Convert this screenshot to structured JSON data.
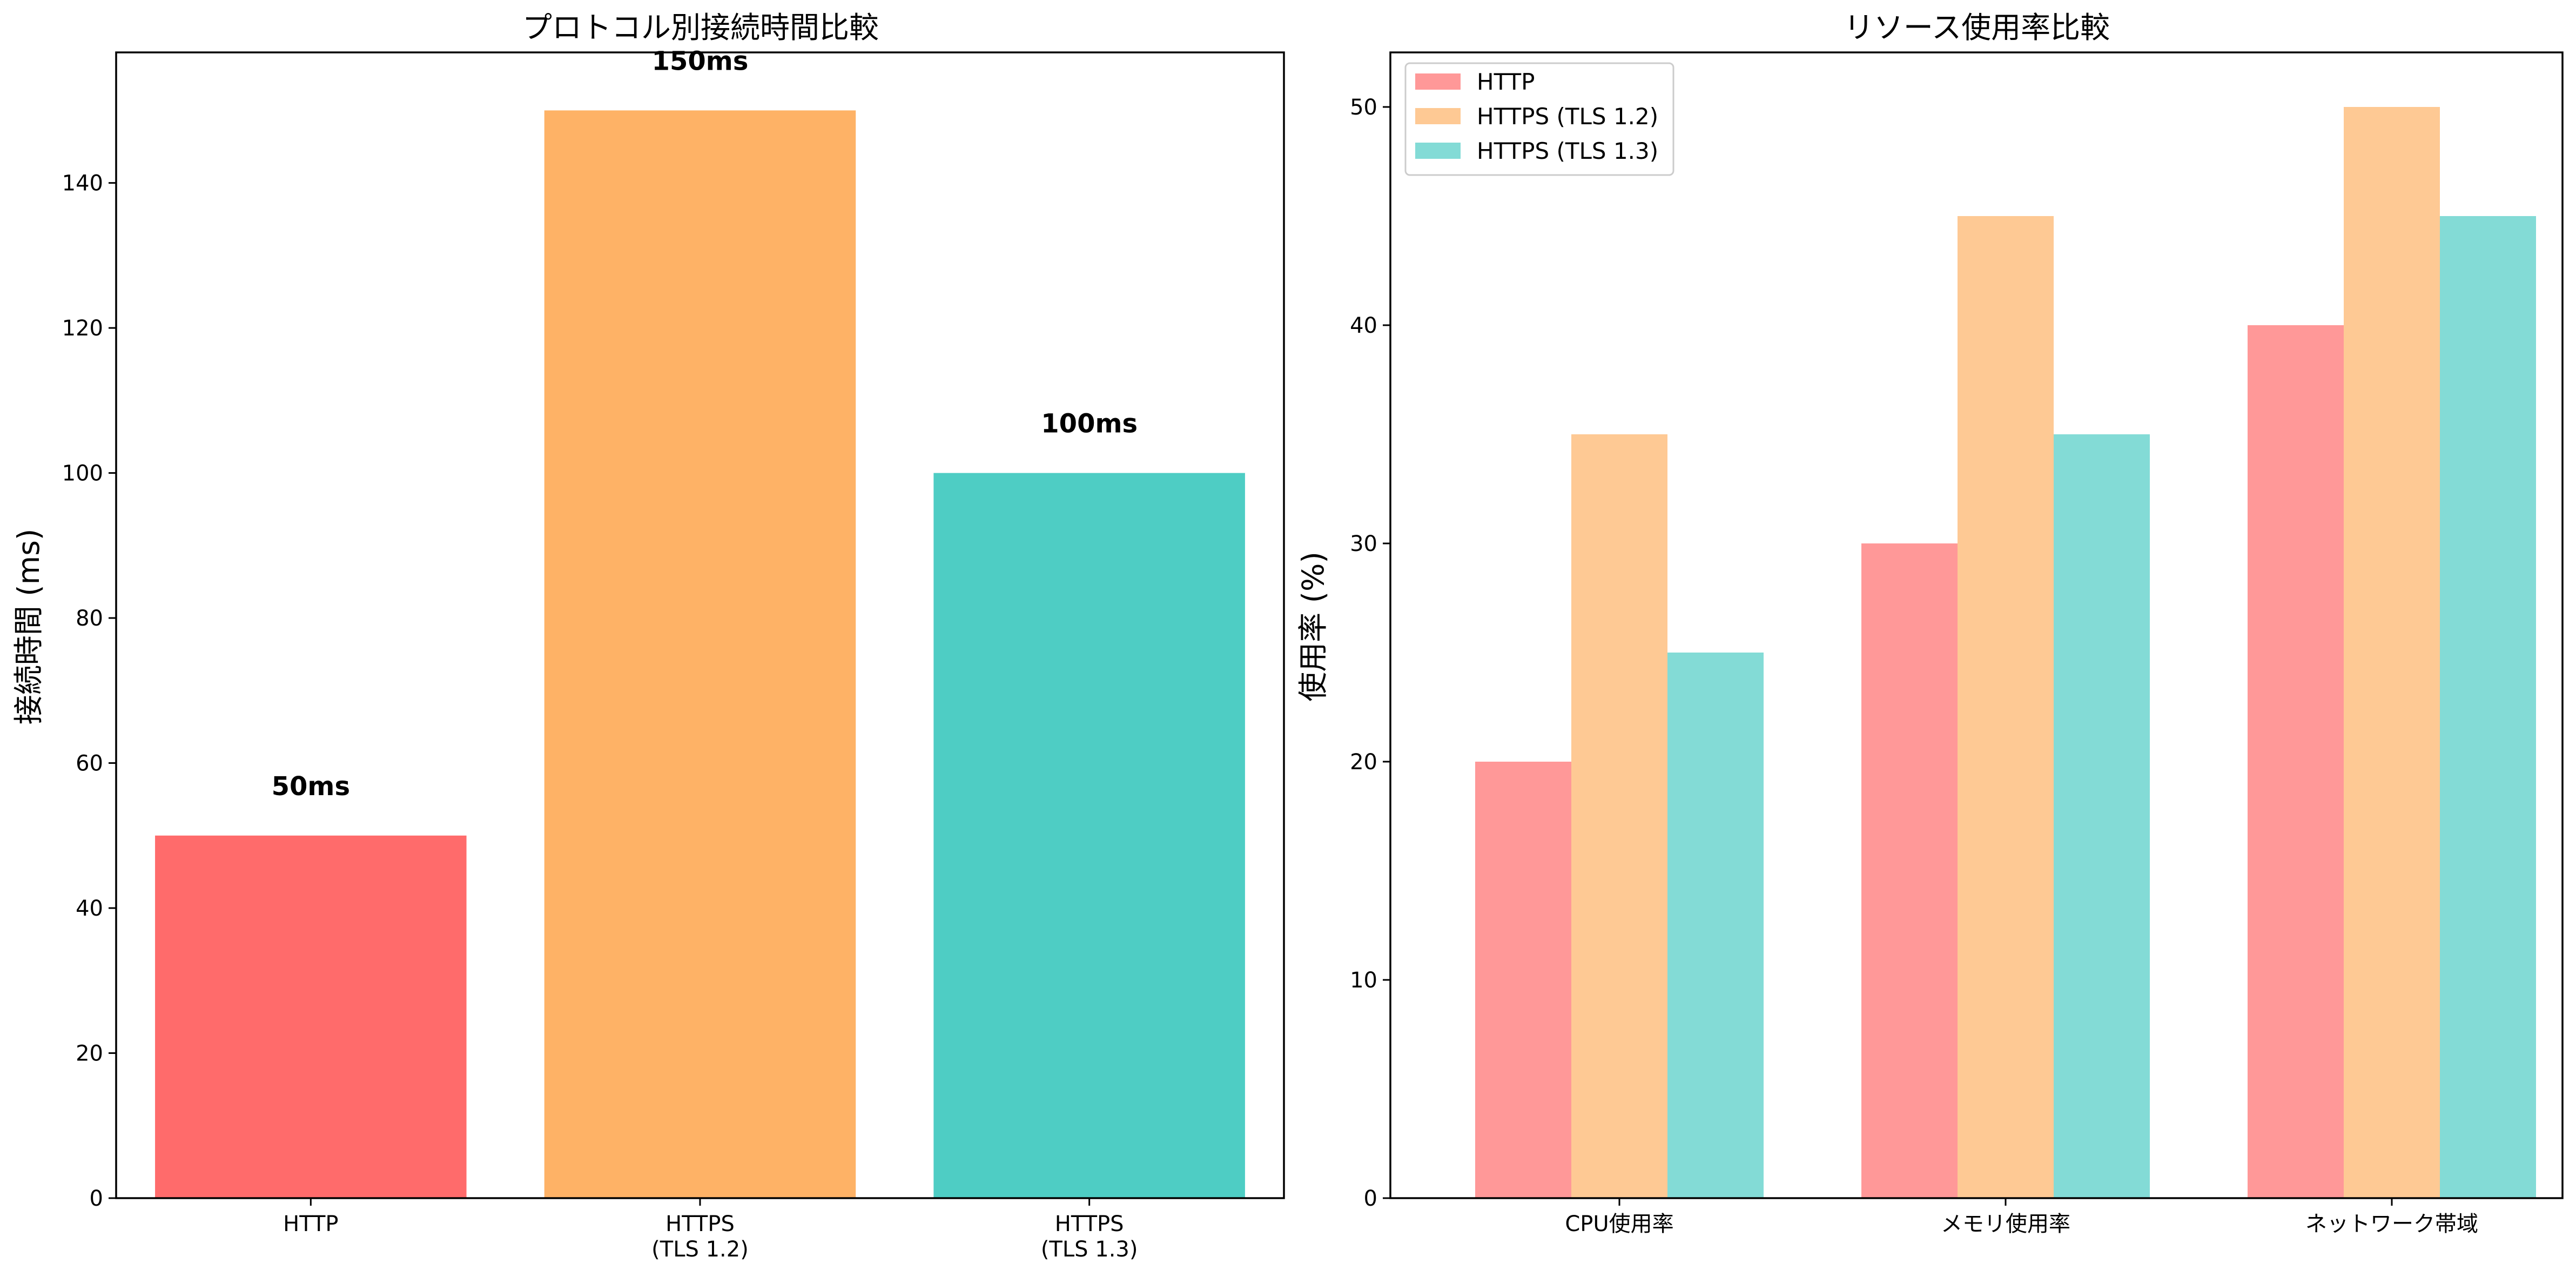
{
  "chart_data": [
    {
      "type": "bar",
      "title": "プロトコル別接続時間比較",
      "xlabel": "",
      "ylabel": "接続時間 (ms)",
      "categories": [
        [
          "HTTP"
        ],
        [
          "HTTPS",
          "(TLS 1.2)"
        ],
        [
          "HTTPS",
          "(TLS 1.3)"
        ]
      ],
      "values": [
        50,
        150,
        100
      ],
      "data_labels": [
        "50ms",
        "150ms",
        "100ms"
      ],
      "colors": [
        "#ff6b6b",
        "#feb266",
        "#4ecdc4"
      ],
      "ylim": [
        0,
        158
      ],
      "yticks": [
        0,
        20,
        40,
        60,
        80,
        100,
        120,
        140
      ],
      "grid": false
    },
    {
      "type": "bar",
      "title": "リソース使用率比較",
      "xlabel": "",
      "ylabel": "使用率 (%)",
      "categories": [
        "CPU使用率",
        "メモリ使用率",
        "ネットワーク帯域"
      ],
      "series": [
        {
          "name": "HTTP",
          "values": [
            20,
            30,
            40
          ],
          "color": "#ff9898"
        },
        {
          "name": "HTTPS (TLS 1.2)",
          "values": [
            35,
            45,
            50
          ],
          "color": "#fec994"
        },
        {
          "name": "HTTPS (TLS 1.3)",
          "values": [
            25,
            35,
            45
          ],
          "color": "#83dbd6"
        }
      ],
      "ylim": [
        0,
        52.5
      ],
      "yticks": [
        0,
        10,
        20,
        30,
        40,
        50
      ],
      "legend_position": "top-left",
      "grid": false
    }
  ]
}
